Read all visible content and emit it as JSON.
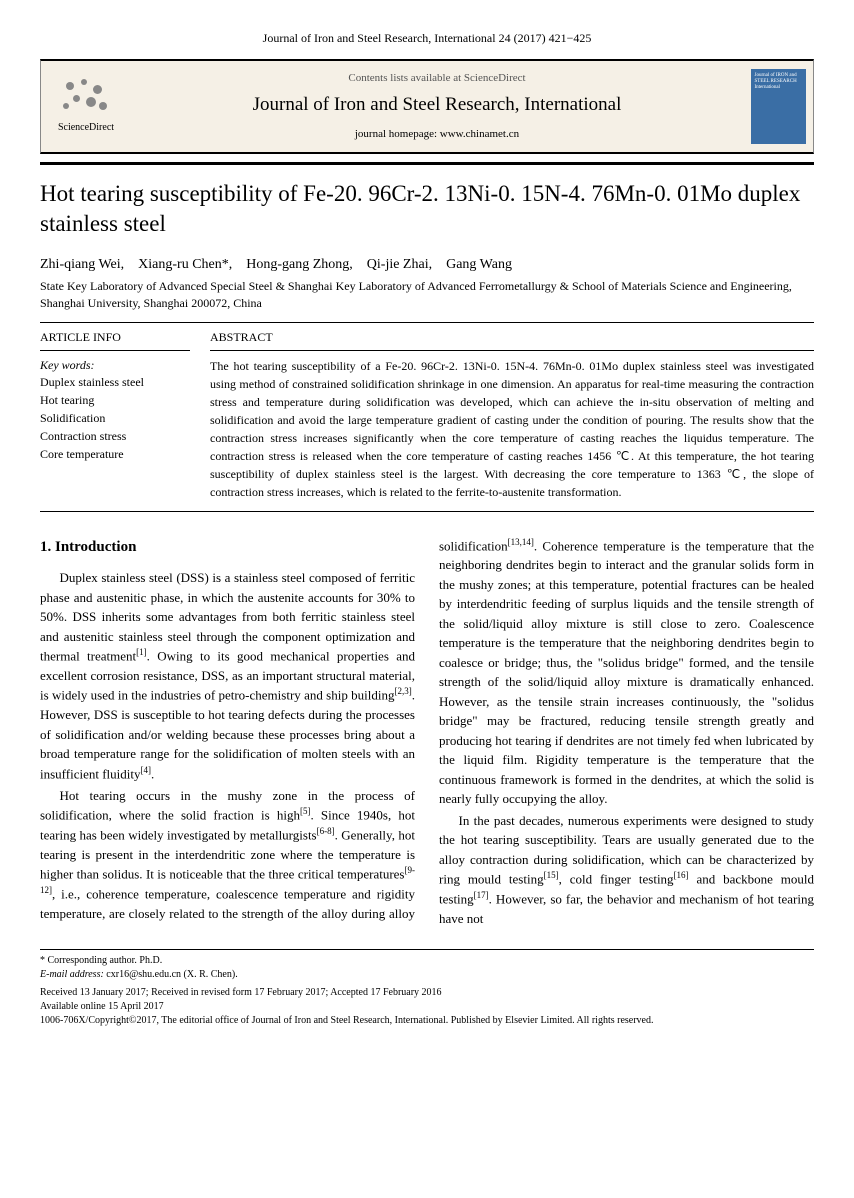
{
  "header": {
    "citation": "Journal of Iron and Steel Research, International 24 (2017) 421−425"
  },
  "banner": {
    "sd_label": "ScienceDirect",
    "contents": "Contents lists available at ScienceDirect",
    "journal": "Journal of Iron and Steel Research, International",
    "homepage": "journal homepage: www.chinamet.cn",
    "cover_text": "Journal of IRON and STEEL RESEARCH International",
    "cover_bg": "#3a6ea5"
  },
  "title": "Hot tearing susceptibility of Fe-20. 96Cr-2. 13Ni-0. 15N-4. 76Mn-0. 01Mo duplex stainless steel",
  "authors": "Zhi-qiang Wei,　Xiang-ru Chen*,　Hong-gang Zhong,　Qi-jie Zhai,　Gang Wang",
  "affiliation": "State Key Laboratory of Advanced Special Steel & Shanghai Key Laboratory of Advanced Ferrometallurgy & School of Materials Science and Engineering, Shanghai University, Shanghai 200072, China",
  "info": {
    "heading": "ARTICLE INFO",
    "keywords_label": "Key words:",
    "keywords": [
      "Duplex stainless steel",
      "Hot tearing",
      "Solidification",
      "Contraction stress",
      "Core temperature"
    ]
  },
  "abstract": {
    "heading": "ABSTRACT",
    "text": "The hot tearing susceptibility of a Fe-20. 96Cr-2. 13Ni-0. 15N-4. 76Mn-0. 01Mo duplex stainless steel was investigated using method of constrained solidification shrinkage in one dimension. An apparatus for real-time measuring the contraction stress and temperature during solidification was developed, which can achieve the in-situ observation of melting and solidification and avoid the large temperature gradient of casting under the condition of pouring. The results show that the contraction stress increases significantly when the core temperature of casting reaches the liquidus temperature. The contraction stress is released when the core temperature of casting reaches 1456 ℃. At this temperature, the hot tearing susceptibility of duplex stainless steel is the largest. With decreasing the core temperature to 1363 ℃, the slope of contraction stress increases, which is related to the ferrite-to-austenite transformation."
  },
  "body": {
    "h1": "1. Introduction",
    "p1": "Duplex stainless steel (DSS) is a stainless steel composed of ferritic phase and austenitic phase, in which the austenite accounts for 30% to 50%. DSS inherits some advantages from both ferritic stainless steel and austenitic stainless steel through the component optimization and thermal treatment[1]. Owing to its good mechanical properties and excellent corrosion resistance, DSS, as an important structural material, is widely used in the industries of petro-chemistry and ship building[2,3]. However, DSS is susceptible to hot tearing defects during the processes of solidification and/or welding because these processes bring about a broad temperature range for the solidification of molten steels with an insufficient fluidity[4].",
    "p2": "Hot tearing occurs in the mushy zone in the process of solidification, where the solid fraction is high[5]. Since 1940s, hot tearing has been widely investigated by metallurgists[6-8]. Generally, hot tearing is present in the interdendritic zone where the temperature is higher than solidus. It is noticeable that the three critical temperatures[9-12], i.e., coherence temperature, coalescence temperature and rigidity temperature, are closely related to the strength of the alloy during alloy solidification[13,14]. Coherence temperature is the temperature that the neighboring dendrites begin to interact and the granular solids form in the mushy zones; at this temperature, potential fractures can be healed by interdendritic feeding of surplus liquids and the tensile strength of the solid/liquid alloy mixture is still close to zero. Coalescence temperature is the temperature that the neighboring dendrites begin to coalesce or bridge; thus, the \"solidus bridge\" formed, and the tensile strength of the solid/liquid alloy mixture is dramatically enhanced. However, as the tensile strain increases continuously, the \"solidus bridge\" may be fractured, reducing tensile strength greatly and producing hot tearing if dendrites are not timely fed when lubricated by the liquid film. Rigidity temperature is the temperature that the continuous framework is formed in the dendrites, at which the solid is nearly fully occupying the alloy.",
    "p3": "In the past decades, numerous experiments were designed to study the hot tearing susceptibility. Tears are usually generated due to the alloy contraction during solidification, which can be characterized by ring mould testing[15], cold finger testing[16] and backbone mould testing[17]. However, so far, the behavior and mechanism of hot tearing have not"
  },
  "footer": {
    "corresponding": "* Corresponding author. Ph.D.",
    "email_label": "E-mail address:",
    "email": "cxr16@shu.edu.cn (X. R. Chen).",
    "received": "Received 13 January 2017; Received in revised form 17 February 2017; Accepted 17 February 2016",
    "available": "Available online 15 April 2017",
    "copyright": "1006-706X/Copyright©2017, The editorial office of Journal of Iron and Steel Research, International. Published by Elsevier Limited. All rights reserved."
  }
}
